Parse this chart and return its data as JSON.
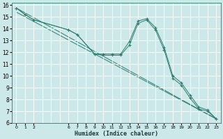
{
  "xlabel": "Humidex (Indice chaleur)",
  "bg_color": "#cce8e8",
  "grid_color": "#ffffff",
  "line_color": "#2e7d6e",
  "xlim": [
    -0.5,
    23.5
  ],
  "ylim": [
    6,
    16.2
  ],
  "xtick_positions": [
    0,
    1,
    2,
    6,
    7,
    8,
    9,
    10,
    11,
    12,
    13,
    14,
    15,
    16,
    17,
    18,
    19,
    20,
    21,
    22,
    23
  ],
  "xtick_labels": [
    "0",
    "1",
    "2",
    "6",
    "7",
    "8",
    "9",
    "10",
    "11",
    "12",
    "13",
    "14",
    "15",
    "16",
    "17",
    "18",
    "19",
    "20",
    "21",
    "22",
    "23"
  ],
  "ytick_positions": [
    6,
    7,
    8,
    9,
    10,
    11,
    12,
    13,
    14,
    15,
    16
  ],
  "ytick_labels": [
    "6",
    "7",
    "8",
    "9",
    "10",
    "11",
    "12",
    "13",
    "14",
    "15",
    "16"
  ],
  "grid_xticks": [
    0,
    1,
    2,
    3,
    4,
    5,
    6,
    7,
    8,
    9,
    10,
    11,
    12,
    13,
    14,
    15,
    16,
    17,
    18,
    19,
    20,
    21,
    22,
    23
  ],
  "series": [
    {
      "x": [
        0,
        1,
        2,
        6,
        7,
        9,
        10,
        11,
        12,
        13,
        14,
        15,
        16,
        17,
        18,
        19,
        20,
        21,
        22,
        23
      ],
      "y": [
        15.75,
        15.2,
        14.75,
        13.9,
        13.5,
        11.85,
        11.85,
        11.85,
        11.85,
        12.9,
        14.65,
        14.85,
        14.1,
        12.45,
        10.0,
        9.4,
        8.35,
        7.35,
        7.1,
        6.35
      ],
      "marker": true
    },
    {
      "x": [
        0,
        1,
        2,
        6,
        7,
        9,
        10,
        11,
        12,
        13,
        14,
        15,
        16,
        17,
        18,
        19,
        20,
        21,
        22,
        23
      ],
      "y": [
        15.75,
        15.2,
        14.75,
        13.9,
        13.5,
        11.85,
        11.75,
        11.75,
        11.75,
        12.6,
        14.45,
        14.75,
        13.9,
        12.2,
        9.8,
        9.2,
        8.1,
        7.2,
        7.0,
        6.35
      ],
      "marker": true
    },
    {
      "x": [
        0,
        23
      ],
      "y": [
        15.75,
        6.35
      ],
      "marker": false
    },
    {
      "x": [
        0,
        23
      ],
      "y": [
        15.4,
        6.35
      ],
      "marker": false
    }
  ]
}
